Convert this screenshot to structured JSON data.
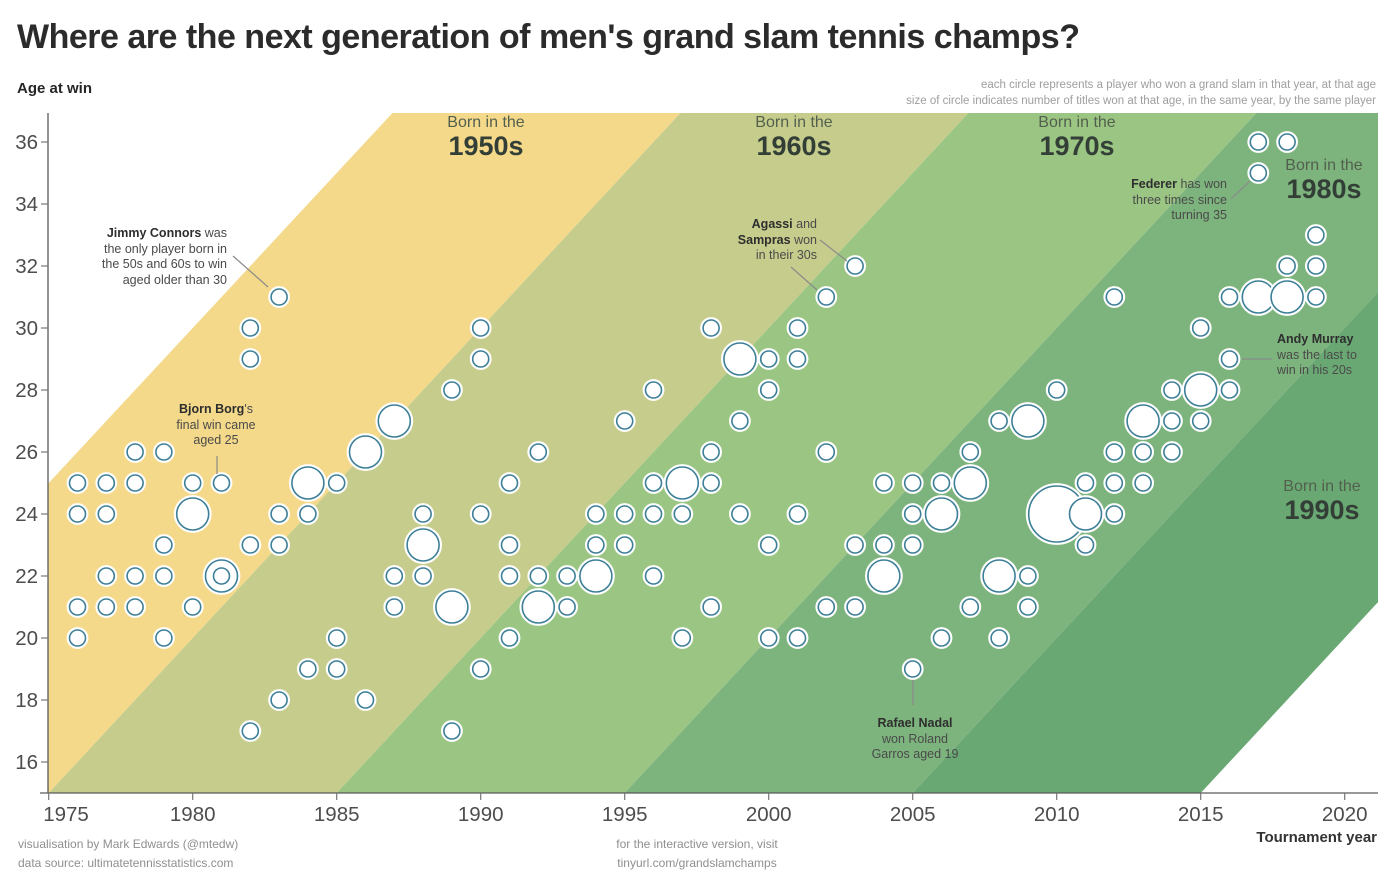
{
  "title": "Where are the next generation of men's grand slam tennis champs?",
  "y_axis_title": "Age at win",
  "x_axis_title": "Tournament year",
  "subtitle_lines": [
    "each circle represents a player who won a grand slam in that year, at that age",
    "size of circle indicates number of titles won at that age, in the same year, by the same player"
  ],
  "footer": {
    "left_lines": [
      "visualisation by Mark Edwards (@mtedw)",
      "data source: ultimatetennisstatistics.com"
    ],
    "center_lines": [
      "for the interactive version, visit",
      "tinyurl.com/grandslamchamps"
    ]
  },
  "bands": [
    {
      "label_top": "Born in the",
      "decade": "1950s",
      "birth_start": 1950,
      "color": "#F4D98A"
    },
    {
      "label_top": "Born in the",
      "decade": "1960s",
      "birth_start": 1960,
      "color": "#C6CD8C"
    },
    {
      "label_top": "Born in the",
      "decade": "1970s",
      "birth_start": 1970,
      "color": "#9BC583"
    },
    {
      "label_top": "Born in the",
      "decade": "1980s",
      "birth_start": 1980,
      "color": "#7DB37D"
    },
    {
      "label_top": "Born in the",
      "decade": "1990s",
      "birth_start": 1990,
      "color": "#69A873"
    }
  ],
  "annotations": [
    {
      "id": "connors",
      "lines": [
        [
          [
            "Jimmy Connors",
            1
          ],
          [
            " was",
            0
          ]
        ],
        [
          [
            "the only player born in",
            0
          ]
        ],
        [
          [
            "the 50s and 60s to win",
            0
          ]
        ],
        [
          [
            "aged older than 30",
            0
          ]
        ]
      ]
    },
    {
      "id": "borg",
      "lines": [
        [
          [
            "Bjorn Borg",
            1
          ],
          [
            "'s",
            0
          ]
        ],
        [
          [
            "final win came",
            0
          ]
        ],
        [
          [
            "aged 25",
            0
          ]
        ]
      ]
    },
    {
      "id": "agassi",
      "lines": [
        [
          [
            "Agassi",
            1
          ],
          [
            " and",
            0
          ]
        ],
        [
          [
            "Sampras",
            1
          ],
          [
            " won",
            0
          ]
        ],
        [
          [
            "in their 30s",
            0
          ]
        ]
      ]
    },
    {
      "id": "federer",
      "lines": [
        [
          [
            "Federer",
            1
          ],
          [
            " has won",
            0
          ]
        ],
        [
          [
            "three times since",
            0
          ]
        ],
        [
          [
            "turning 35",
            0
          ]
        ]
      ]
    },
    {
      "id": "murray",
      "lines": [
        [
          [
            "Andy Murray",
            1
          ]
        ],
        [
          [
            "was the last to",
            0
          ]
        ],
        [
          [
            "win in his 20s",
            0
          ]
        ]
      ]
    },
    {
      "id": "nadal",
      "lines": [
        [
          [
            "Rafael Nadal",
            1
          ]
        ],
        [
          [
            "won Roland",
            0
          ]
        ],
        [
          [
            "Garros aged 19",
            0
          ]
        ]
      ]
    }
  ],
  "chart_data": {
    "type": "scatter",
    "title": "Where are the next generation of men's grand slam tennis champs?",
    "xlabel": "Tournament year",
    "ylabel": "Age at win",
    "x_ticks": [
      1975,
      1980,
      1985,
      1990,
      1995,
      2000,
      2005,
      2010,
      2015,
      2020
    ],
    "y_ticks": [
      36,
      34,
      32,
      30,
      28,
      26,
      24,
      22,
      20,
      18,
      16
    ],
    "xlim": [
      1975,
      2021
    ],
    "ylim": [
      15,
      37
    ],
    "grid": false,
    "size_encoding": "number of titles won at that age, in the same year, by the same player",
    "point_format": "[tournament_year, age_at_win, titles]",
    "points": [
      [
        2017,
        36,
        1
      ],
      [
        2018,
        36,
        1
      ],
      [
        2017,
        35,
        1
      ],
      [
        2019,
        33,
        1
      ],
      [
        2003,
        32,
        1
      ],
      [
        2018,
        32,
        1
      ],
      [
        2019,
        32,
        1
      ],
      [
        1983,
        31,
        1
      ],
      [
        2002,
        31,
        1
      ],
      [
        2012,
        31,
        1
      ],
      [
        2016,
        31,
        1
      ],
      [
        2017,
        31,
        2
      ],
      [
        2018,
        31,
        2
      ],
      [
        2019,
        31,
        1
      ],
      [
        1982,
        30,
        1
      ],
      [
        1990,
        30,
        1
      ],
      [
        1998,
        30,
        1
      ],
      [
        2001,
        30,
        1
      ],
      [
        2015,
        30,
        1
      ],
      [
        1982,
        29,
        1
      ],
      [
        1990,
        29,
        1
      ],
      [
        1999,
        29,
        2
      ],
      [
        2000,
        29,
        1
      ],
      [
        2001,
        29,
        1
      ],
      [
        2016,
        29,
        1
      ],
      [
        1989,
        28,
        1
      ],
      [
        1996,
        28,
        1
      ],
      [
        2000,
        28,
        1
      ],
      [
        2010,
        28,
        1
      ],
      [
        2014,
        28,
        1
      ],
      [
        2015,
        28,
        2
      ],
      [
        2016,
        28,
        1
      ],
      [
        1987,
        27,
        2
      ],
      [
        1995,
        27,
        1
      ],
      [
        1999,
        27,
        1
      ],
      [
        2008,
        27,
        1
      ],
      [
        2009,
        27,
        2
      ],
      [
        2013,
        27,
        2
      ],
      [
        2014,
        27,
        1
      ],
      [
        2015,
        27,
        1
      ],
      [
        1978,
        26,
        1
      ],
      [
        1979,
        26,
        1
      ],
      [
        1986,
        26,
        2
      ],
      [
        1992,
        26,
        1
      ],
      [
        1998,
        26,
        1
      ],
      [
        2002,
        26,
        1
      ],
      [
        2007,
        26,
        1
      ],
      [
        2012,
        26,
        1
      ],
      [
        2013,
        26,
        1
      ],
      [
        2014,
        26,
        1
      ],
      [
        1976,
        25,
        1
      ],
      [
        1977,
        25,
        1
      ],
      [
        1978,
        25,
        1
      ],
      [
        1980,
        25,
        1
      ],
      [
        1981,
        25,
        1
      ],
      [
        1984,
        25,
        2
      ],
      [
        1985,
        25,
        1
      ],
      [
        1991,
        25,
        1
      ],
      [
        1996,
        25,
        1
      ],
      [
        1997,
        25,
        2
      ],
      [
        1998,
        25,
        1
      ],
      [
        2004,
        25,
        1
      ],
      [
        2005,
        25,
        1
      ],
      [
        2006,
        25,
        1
      ],
      [
        2007,
        25,
        2
      ],
      [
        2011,
        25,
        1
      ],
      [
        2012,
        25,
        1
      ],
      [
        2013,
        25,
        1
      ],
      [
        1976,
        24,
        1
      ],
      [
        1977,
        24,
        1
      ],
      [
        1980,
        24,
        2
      ],
      [
        1983,
        24,
        1
      ],
      [
        1984,
        24,
        1
      ],
      [
        1988,
        24,
        1
      ],
      [
        1990,
        24,
        1
      ],
      [
        1994,
        24,
        1
      ],
      [
        1995,
        24,
        1
      ],
      [
        1996,
        24,
        1
      ],
      [
        1997,
        24,
        1
      ],
      [
        1999,
        24,
        1
      ],
      [
        2001,
        24,
        1
      ],
      [
        2005,
        24,
        1
      ],
      [
        2006,
        24,
        2
      ],
      [
        2010,
        24,
        3
      ],
      [
        2011,
        24,
        2
      ],
      [
        2012,
        24,
        1
      ],
      [
        1979,
        23,
        1
      ],
      [
        1982,
        23,
        1
      ],
      [
        1983,
        23,
        1
      ],
      [
        1988,
        23,
        2
      ],
      [
        1991,
        23,
        1
      ],
      [
        1994,
        23,
        1
      ],
      [
        1995,
        23,
        1
      ],
      [
        2000,
        23,
        1
      ],
      [
        2003,
        23,
        1
      ],
      [
        2004,
        23,
        1
      ],
      [
        2005,
        23,
        1
      ],
      [
        2011,
        23,
        1
      ],
      [
        1977,
        22,
        1
      ],
      [
        1978,
        22,
        1
      ],
      [
        1979,
        22,
        1
      ],
      [
        1981,
        22,
        2
      ],
      [
        1981,
        22,
        1
      ],
      [
        1987,
        22,
        1
      ],
      [
        1988,
        22,
        1
      ],
      [
        1991,
        22,
        1
      ],
      [
        1992,
        22,
        1
      ],
      [
        1993,
        22,
        1
      ],
      [
        1994,
        22,
        2
      ],
      [
        1996,
        22,
        1
      ],
      [
        2004,
        22,
        2
      ],
      [
        2008,
        22,
        2
      ],
      [
        2009,
        22,
        1
      ],
      [
        1976,
        21,
        1
      ],
      [
        1977,
        21,
        1
      ],
      [
        1978,
        21,
        1
      ],
      [
        1980,
        21,
        1
      ],
      [
        1987,
        21,
        1
      ],
      [
        1989,
        21,
        2
      ],
      [
        1992,
        21,
        2
      ],
      [
        1993,
        21,
        1
      ],
      [
        1998,
        21,
        1
      ],
      [
        2002,
        21,
        1
      ],
      [
        2003,
        21,
        1
      ],
      [
        2007,
        21,
        1
      ],
      [
        2009,
        21,
        1
      ],
      [
        1976,
        20,
        1
      ],
      [
        1979,
        20,
        1
      ],
      [
        1985,
        20,
        1
      ],
      [
        1991,
        20,
        1
      ],
      [
        1997,
        20,
        1
      ],
      [
        2000,
        20,
        1
      ],
      [
        2001,
        20,
        1
      ],
      [
        2006,
        20,
        1
      ],
      [
        2008,
        20,
        1
      ],
      [
        1984,
        19,
        1
      ],
      [
        1985,
        19,
        1
      ],
      [
        1990,
        19,
        1
      ],
      [
        2005,
        19,
        1
      ],
      [
        1983,
        18,
        1
      ],
      [
        1986,
        18,
        1
      ],
      [
        1982,
        17,
        1
      ],
      [
        1989,
        17,
        1
      ]
    ],
    "colors": {
      "circle_fill": "#ffffff",
      "circle_stroke": "#3d7f97",
      "axis": "#4a4a4a",
      "band_1950s": "#F4D98A",
      "band_1960s": "#C6CD8C",
      "band_1970s": "#9BC583",
      "band_1980s": "#7DB37D",
      "band_1990s": "#69A873"
    }
  }
}
